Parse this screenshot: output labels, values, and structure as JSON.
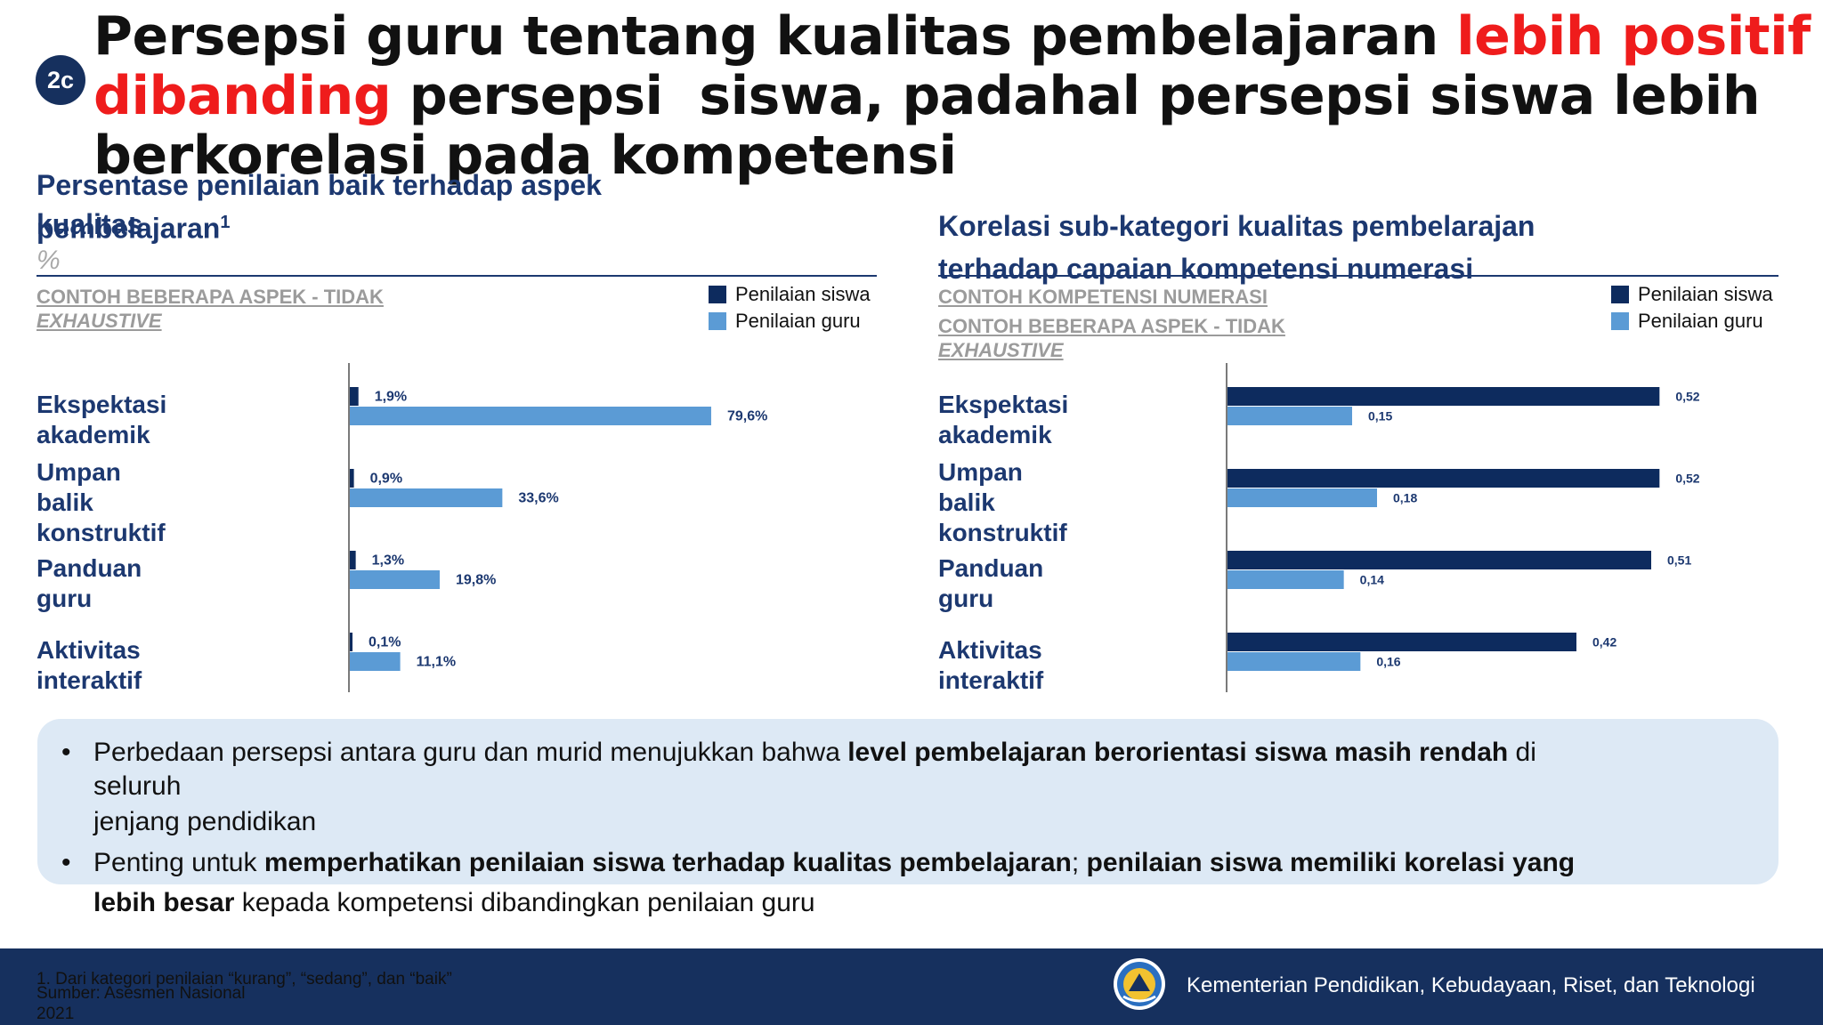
{
  "slide": {
    "badge": "2c",
    "title_part1": "Persepsi guru tentang kualitas pembelajaran ",
    "title_highlight1": "lebih positif",
    "title_highlight2": "dibanding",
    "title_part2": " persepsi  siswa, padahal persepsi siswa lebih",
    "title_part3": "berkorelasi pada kompetensi"
  },
  "left_panel": {
    "title_line1": "Persentase penilaian baik terhadap aspek",
    "title_line2a": "pembelajaran",
    "title_line2b": "kualitas",
    "superscript": "1",
    "unit": "%",
    "note_line1": "CONTOH BEBERAPA ASPEK - TIDAK",
    "note_line2": "EXHAUSTIVE",
    "categories": [
      "Ekspektasi\nakademik",
      "Umpan\nbalik\nkonstruktif",
      "Panduan\nguru",
      "Aktivitas\ninteraktif"
    ]
  },
  "right_panel": {
    "title_line1": "Korelasi sub-kategori kualitas pembelarajan",
    "title_line2": "terhadap  capaian kompetensi numerasi",
    "note1": "CONTOH KOMPETENSI NUMERASI",
    "note_line1": "CONTOH BEBERAPA ASPEK - TIDAK",
    "note_line2": "EXHAUSTIVE",
    "categories": [
      "Ekspektasi\nakademik",
      "Umpan\nbalik\nkonstruktif",
      "Panduan\nguru",
      "Aktivitas\ninteraktif"
    ]
  },
  "legend": {
    "siswa": "Penilaian siswa",
    "guru": "Penilaian guru"
  },
  "colors": {
    "siswa": "#0d2b5e",
    "guru": "#5b9bd5",
    "title_highlight": "#ef1c1c",
    "footer": "#16305e",
    "callout": "#dde9f5"
  },
  "chart_data": [
    {
      "type": "bar",
      "orientation": "horizontal",
      "categories": [
        "Ekspektasi akademik",
        "Umpan balik konstruktif",
        "Panduan guru",
        "Aktivitas interaktif"
      ],
      "series": [
        {
          "name": "Penilaian siswa",
          "values": [
            1.9,
            0.9,
            1.3,
            0.1
          ],
          "labels": [
            "1,9%",
            "0,9%",
            "1,3%",
            "0,1%"
          ]
        },
        {
          "name": "Penilaian guru",
          "values": [
            79.6,
            33.6,
            19.8,
            11.1
          ],
          "labels": [
            "79,6%",
            "33,6%",
            "19,8%",
            "11,1%"
          ]
        }
      ],
      "xlim": [
        0,
        100
      ]
    },
    {
      "type": "bar",
      "orientation": "horizontal",
      "categories": [
        "Ekspektasi akademik",
        "Umpan balik konstruktif",
        "Panduan guru",
        "Aktivitas interaktif"
      ],
      "series": [
        {
          "name": "Penilaian siswa",
          "values": [
            0.52,
            0.52,
            0.51,
            0.42
          ],
          "labels": [
            "0,52",
            "0,52",
            "0,51",
            "0,42"
          ]
        },
        {
          "name": "Penilaian guru",
          "values": [
            0.15,
            0.18,
            0.14,
            0.16
          ],
          "labels": [
            "0,15",
            "0,18",
            "0,14",
            "0,16"
          ]
        }
      ],
      "xlim": [
        0,
        0.6
      ]
    }
  ],
  "bullets": {
    "b1_pre": "Perbedaan persepsi antara guru dan murid menujukkan bahwa ",
    "b1_bold": "level pembelajaran berorientasi siswa masih rendah",
    "b1_post": " di",
    "b1_line2": "seluruh",
    "b1_line3": "jenjang pendidikan",
    "b2_pre": "Penting untuk ",
    "b2_bold1": "memperhatikan penilaian siswa terhadap kualitas pembelajaran",
    "b2_mid": "; ",
    "b2_bold2": "penilaian siswa memiliki korelasi yang",
    "b2_bold3": "lebih  besar",
    "b2_post": " kepada kompetensi dibandingkan penilaian guru",
    "marker": "•"
  },
  "footer": {
    "footnote": "1. Dari kategori penilaian “kurang”, “sedang”, dan “baik”",
    "source_line1": "Sumber: Asesmen Nasional",
    "source_line2": "2021",
    "ministry": "Kementerian Pendidikan, Kebudayaan, Riset, dan Teknologi"
  }
}
